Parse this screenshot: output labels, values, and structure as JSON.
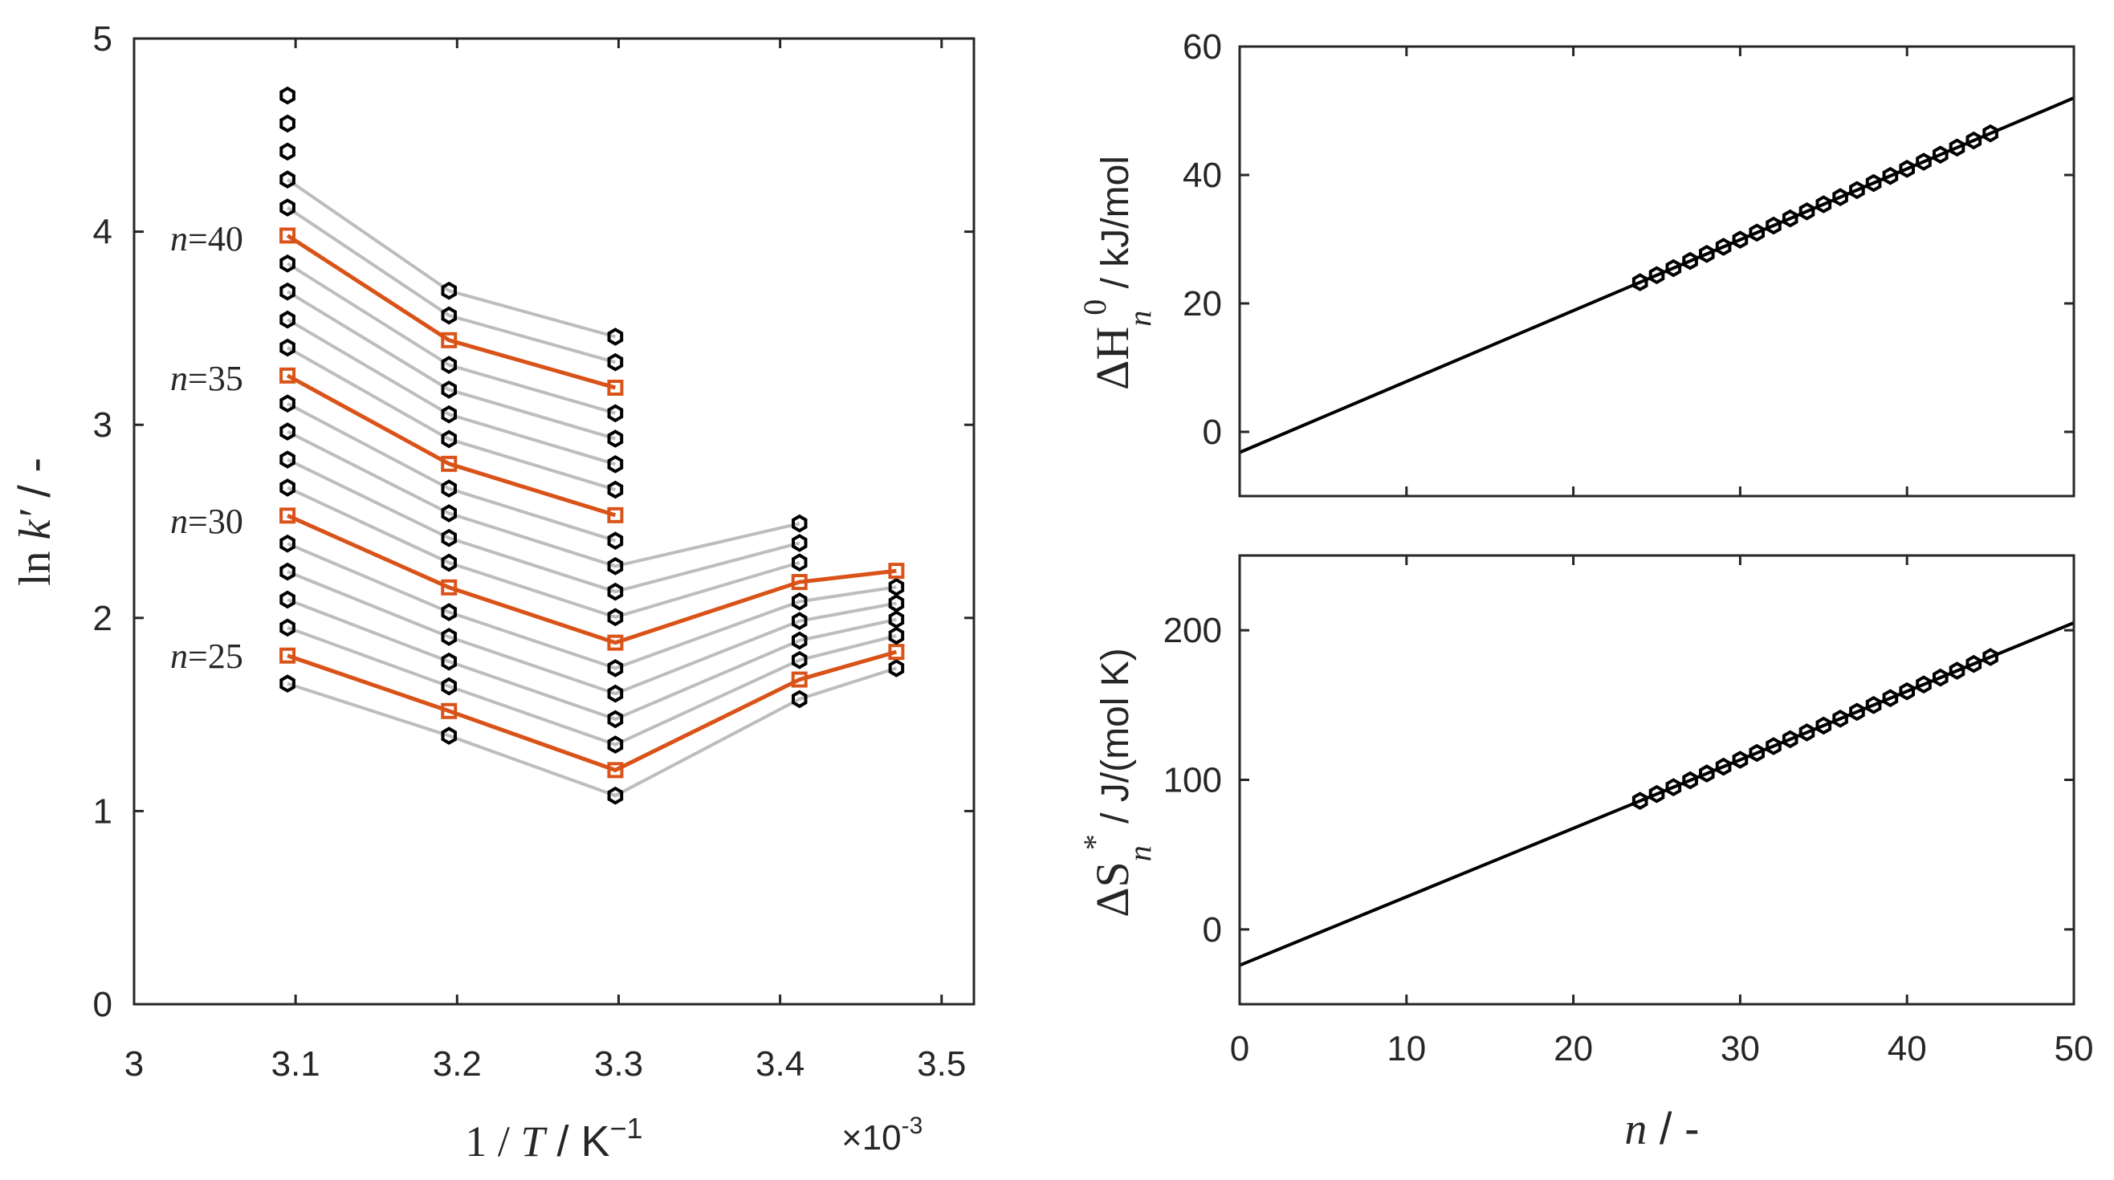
{
  "chart_data": [
    {
      "type": "line",
      "panel": "left",
      "xlim": [
        3.0,
        3.52
      ],
      "ylim": [
        0,
        5
      ],
      "x_ticks": [
        "3",
        "3.1",
        "3.2",
        "3.3",
        "3.4",
        "3.5"
      ],
      "y_ticks": [
        "0",
        "1",
        "2",
        "3",
        "4",
        "5"
      ],
      "x_multiplier": "×10",
      "x_multiplier_exp": "-3",
      "xlabel": {
        "one": "1",
        "slash": " / ",
        "T": "T",
        "unit": "  / K",
        "exp": "−1"
      },
      "ylabel": {
        "ln": "ln ",
        "k": "k′",
        "unit": "  / -"
      },
      "inv_T": [
        3.095,
        3.195,
        3.298,
        3.412,
        3.472
      ],
      "series_first": {
        "n": 24,
        "intercepts": [
          1.66,
          1.39,
          1.08,
          1.58,
          1.74
        ],
        "slopes": [
          0.145,
          0.128,
          0.132,
          0.101,
          0.084
        ]
      },
      "n_max": 45,
      "highlighted_n": [
        25,
        30,
        35,
        40
      ],
      "series_labels": [
        {
          "n": 25,
          "text": "n",
          "eq": "=25"
        },
        {
          "n": 30,
          "text": "n",
          "eq": "=30"
        },
        {
          "n": 35,
          "text": "n",
          "eq": "=35"
        },
        {
          "n": 40,
          "text": "n",
          "eq": "=40"
        }
      ],
      "colors": {
        "fit": "#bdbdbd",
        "highlight": "#d95319",
        "marker": "#000000"
      }
    },
    {
      "type": "line",
      "panel": "top-right",
      "xlim": [
        0,
        50
      ],
      "ylim": [
        -10,
        60
      ],
      "y_ticks": [
        "0",
        "20",
        "40",
        "60"
      ],
      "ylabel": {
        "delta": "ΔH",
        "sub": "n",
        "sup": "0",
        "unit": " / kJ/mol"
      },
      "fit": {
        "intercept": -3.2,
        "slope": 1.104
      },
      "points_n": [
        24,
        45
      ]
    },
    {
      "type": "line",
      "panel": "bottom-right",
      "xlim": [
        0,
        50
      ],
      "ylim": [
        -50,
        250
      ],
      "x_ticks": [
        "0",
        "10",
        "20",
        "30",
        "40",
        "50"
      ],
      "y_ticks": [
        "0",
        "100",
        "200"
      ],
      "xlabel": {
        "n": "n",
        "unit": "  / -"
      },
      "ylabel": {
        "delta": "ΔS",
        "sub": "n",
        "sup": "*",
        "unit": " / J/(mol K)"
      },
      "fit": {
        "intercept": -24.0,
        "slope": 4.58
      },
      "points_n": [
        24,
        45
      ]
    }
  ]
}
